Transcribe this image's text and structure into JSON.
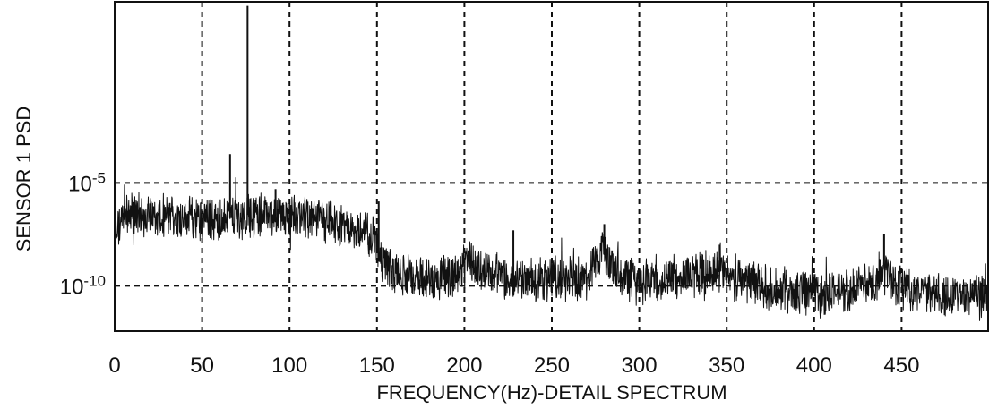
{
  "chart_data": {
    "type": "line",
    "title": "",
    "xlabel": "FREQUENCY(Hz)-DETAIL SPECTRUM",
    "ylabel": "SENSOR 1 PSD",
    "x_ticks": [
      {
        "value": 0,
        "label": "0"
      },
      {
        "value": 50,
        "label": "50"
      },
      {
        "value": 100,
        "label": "100"
      },
      {
        "value": 150,
        "label": "150"
      },
      {
        "value": 200,
        "label": "200"
      },
      {
        "value": 250,
        "label": "250"
      },
      {
        "value": 300,
        "label": "300"
      },
      {
        "value": 350,
        "label": "350"
      },
      {
        "value": 400,
        "label": "400"
      },
      {
        "value": 450,
        "label": "450"
      }
    ],
    "y_ticks": [
      {
        "value": -5,
        "base": "10",
        "exp": "-5"
      },
      {
        "value": -10,
        "base": "10",
        "exp": "-10"
      }
    ],
    "y_scale": "log",
    "xlim": [
      0,
      500
    ],
    "ylim_log10": [
      -12.2,
      3.8
    ],
    "grid": true,
    "series": [
      {
        "envelope_x": [
          0,
          3,
          6,
          10,
          20,
          40,
          60,
          80,
          100,
          120,
          140,
          148,
          152,
          156,
          165,
          180,
          195,
          205,
          210,
          225,
          250,
          270,
          280,
          285,
          295,
          310,
          330,
          345,
          360,
          380,
          390,
          400,
          420,
          435,
          440,
          445,
          460,
          480,
          500
        ],
        "envelope_log10_psd": [
          -7.6,
          -7.0,
          -6.6,
          -6.5,
          -6.6,
          -6.7,
          -6.8,
          -6.5,
          -6.6,
          -6.9,
          -7.3,
          -7.6,
          -8.7,
          -9.2,
          -9.4,
          -9.6,
          -9.5,
          -8.8,
          -9.3,
          -9.7,
          -9.6,
          -9.6,
          -8.4,
          -9.1,
          -9.7,
          -9.7,
          -9.4,
          -9.3,
          -9.8,
          -10.1,
          -10.3,
          -10.4,
          -10.3,
          -9.8,
          -9.0,
          -9.9,
          -10.3,
          -10.5,
          -10.5
        ],
        "noise_amplitude_decades": 1.2
      }
    ],
    "peaks": [
      {
        "x": 66,
        "log10_psd": -3.6
      },
      {
        "x": 76,
        "log10_psd": 3.6
      },
      {
        "x": 92,
        "log10_psd": -5.3
      },
      {
        "x": 151,
        "log10_psd": -5.9
      },
      {
        "x": 228,
        "log10_psd": -7.3
      },
      {
        "x": 280,
        "log10_psd": -7.0
      },
      {
        "x": 440,
        "log10_psd": -7.5
      },
      {
        "x": 346,
        "log10_psd": -8.0
      }
    ]
  }
}
